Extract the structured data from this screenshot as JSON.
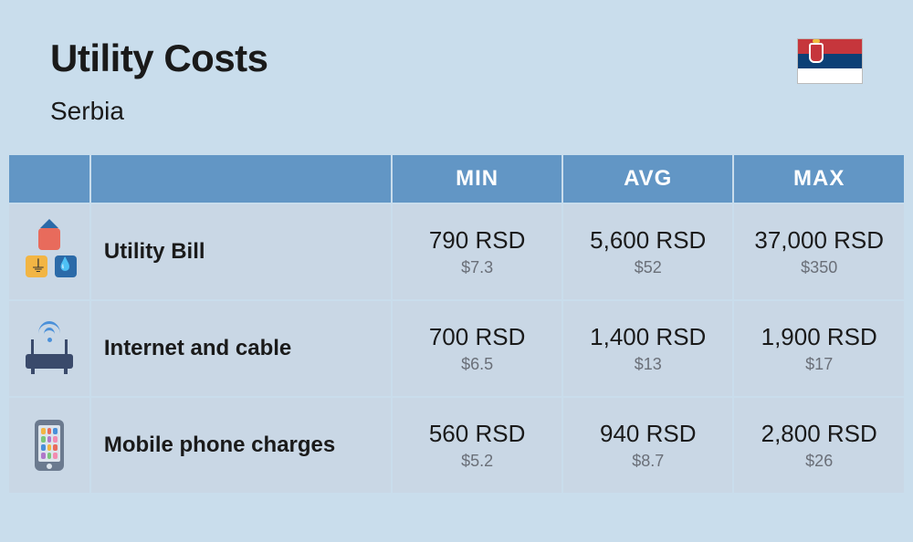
{
  "header": {
    "title": "Utility Costs",
    "country": "Serbia"
  },
  "columns": {
    "min": "MIN",
    "avg": "AVG",
    "max": "MAX"
  },
  "colors": {
    "page_bg": "#c9ddec",
    "header_bg": "#6296c5",
    "header_text": "#ffffff",
    "cell_bg": "#c9d7e5",
    "text_primary": "#1a1a1a",
    "text_secondary": "#6a6f78"
  },
  "rows": [
    {
      "icon": "utility",
      "label": "Utility Bill",
      "min": {
        "local": "790 RSD",
        "usd": "$7.3"
      },
      "avg": {
        "local": "5,600 RSD",
        "usd": "$52"
      },
      "max": {
        "local": "37,000 RSD",
        "usd": "$350"
      }
    },
    {
      "icon": "router",
      "label": "Internet and cable",
      "min": {
        "local": "700 RSD",
        "usd": "$6.5"
      },
      "avg": {
        "local": "1,400 RSD",
        "usd": "$13"
      },
      "max": {
        "local": "1,900 RSD",
        "usd": "$17"
      }
    },
    {
      "icon": "phone",
      "label": "Mobile phone charges",
      "min": {
        "local": "560 RSD",
        "usd": "$5.2"
      },
      "avg": {
        "local": "940 RSD",
        "usd": "$8.7"
      },
      "max": {
        "local": "2,800 RSD",
        "usd": "$26"
      }
    }
  ]
}
